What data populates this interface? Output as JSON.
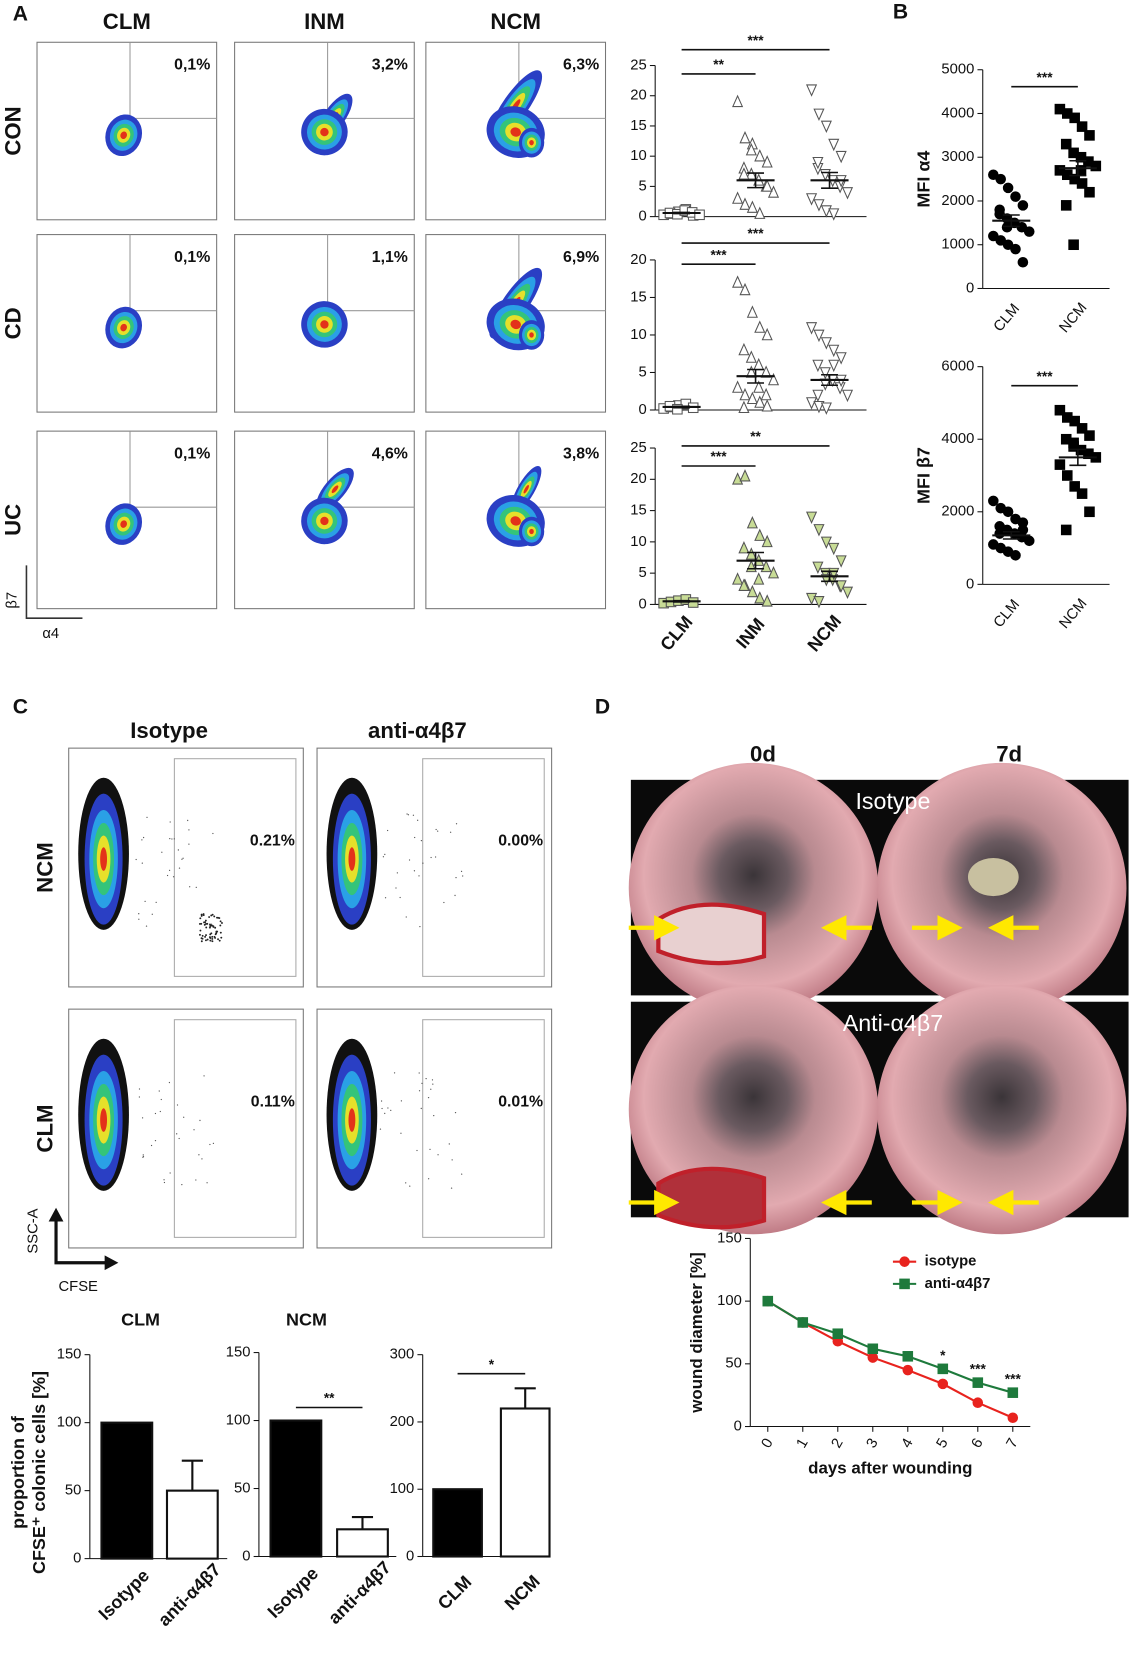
{
  "panel_labels": [
    "A",
    "B",
    "C",
    "D"
  ],
  "flow_a": {
    "columns": [
      "CLM",
      "INM",
      "NCM"
    ],
    "rows": [
      "CON",
      "CD",
      "UC"
    ],
    "percentages": [
      [
        "0,1%",
        "3,2%",
        "6,3%"
      ],
      [
        "0,1%",
        "1,1%",
        "6,9%"
      ],
      [
        "0,1%",
        "4,6%",
        "3,8%"
      ]
    ],
    "x_axis": "α4",
    "y_axis": "β7"
  },
  "flow_c": {
    "columns": [
      "Isotype",
      "anti-α4β7"
    ],
    "rows": [
      "NCM",
      "CLM"
    ],
    "percentages": [
      [
        "0.21%",
        "0.00%"
      ],
      [
        "0.11%",
        "0.01%"
      ]
    ],
    "x_axis": "CFSE",
    "y_axis": "SSC-A"
  },
  "endoscopy": {
    "columns": [
      "0d",
      "7d"
    ],
    "rows": [
      "Isotype",
      "Anti-α4β7"
    ]
  },
  "chart_data": [
    {
      "type": "dot",
      "categories": [
        null,
        null,
        null
      ],
      "ylim": [
        0,
        25
      ],
      "yticks": [
        0,
        5,
        10,
        15,
        20,
        25
      ],
      "markers": [
        "square",
        "triangle-up",
        "triangle-down"
      ],
      "fill": "#ffffff",
      "points": [
        [
          0.3,
          0.5,
          0.8,
          1.2,
          0.2,
          0.6,
          0.4,
          1.0,
          0.7,
          0.3
        ],
        [
          19,
          13,
          12,
          10,
          9,
          8,
          7,
          6,
          5,
          4,
          3,
          2,
          1.5,
          0.5,
          5,
          7,
          11
        ],
        [
          21,
          17,
          15,
          12,
          10,
          8,
          7,
          6,
          5,
          4,
          3,
          2,
          1,
          0.5,
          6,
          9
        ]
      ],
      "means": [
        0.6,
        6,
        6
      ],
      "sems": [
        0.1,
        1.2,
        1.3
      ],
      "annotations": [
        {
          "text": "***",
          "from": 0,
          "to": 2
        },
        {
          "text": "**",
          "from": 0,
          "to": 1
        }
      ]
    },
    {
      "type": "dot",
      "categories": [
        null,
        null,
        null
      ],
      "ylim": [
        0,
        20
      ],
      "yticks": [
        0,
        5,
        10,
        15,
        20
      ],
      "markers": [
        "square",
        "triangle-up",
        "triangle-down"
      ],
      "fill": "#ffffff",
      "points": [
        [
          0.2,
          0.4,
          0.6,
          0.8,
          0.3,
          0.5,
          0.1
        ],
        [
          17,
          16,
          13,
          11,
          10,
          8,
          7,
          6,
          5,
          4,
          3,
          2,
          1.5,
          1,
          0.5,
          0.3,
          5,
          3,
          2
        ],
        [
          11,
          10,
          9,
          8,
          7,
          6,
          5,
          4,
          3,
          2,
          1,
          0.5,
          0.3,
          6,
          4,
          2,
          3.5
        ]
      ],
      "means": [
        0.4,
        4.5,
        4
      ],
      "sems": [
        0.1,
        0.9,
        0.7
      ],
      "annotations": [
        {
          "text": "***",
          "from": 0,
          "to": 2
        },
        {
          "text": "***",
          "from": 0,
          "to": 1
        }
      ]
    },
    {
      "type": "dot",
      "categories": [
        "CLM",
        "INM",
        "NCM"
      ],
      "ylim": [
        0,
        25
      ],
      "yticks": [
        0,
        5,
        10,
        15,
        20,
        25
      ],
      "markers": [
        "square",
        "triangle-up",
        "triangle-down"
      ],
      "fill": "#c8dc96",
      "points": [
        [
          0.2,
          0.4,
          0.6,
          0.8,
          0.3
        ],
        [
          20,
          20.5,
          13,
          11,
          10,
          9,
          8,
          7,
          6,
          5,
          4,
          3,
          2,
          1,
          0.5,
          3,
          6,
          4
        ],
        [
          14,
          12,
          10,
          9,
          7,
          6,
          5,
          4,
          3,
          2,
          1,
          0.5,
          4,
          5,
          3
        ]
      ],
      "means": [
        0.5,
        7,
        4.5
      ],
      "sems": [
        0.1,
        1.3,
        0.8
      ],
      "annotations": [
        {
          "text": "**",
          "from": 0,
          "to": 2
        },
        {
          "text": "***",
          "from": 0,
          "to": 1
        }
      ]
    },
    {
      "type": "dot",
      "categories": [
        "CLM",
        "NCM"
      ],
      "ylabel": "MFI α4",
      "ylim": [
        0,
        5000
      ],
      "yticks": [
        0,
        1000,
        2000,
        3000,
        4000,
        5000
      ],
      "markers": [
        "circle",
        "square"
      ],
      "fill": "#000000",
      "points": [
        [
          2600,
          2500,
          2300,
          2100,
          1900,
          1700,
          1600,
          1500,
          1400,
          1300,
          1200,
          1100,
          1000,
          900,
          600,
          1800,
          1400
        ],
        [
          4100,
          4000,
          3900,
          3700,
          3500,
          3300,
          3100,
          3000,
          2900,
          2800,
          2700,
          2600,
          2500,
          2400,
          2200,
          1900,
          1000,
          2700
        ]
      ],
      "means": [
        1550,
        2750
      ],
      "sems": [
        130,
        170
      ],
      "annotations": [
        {
          "text": "***",
          "from": 0,
          "to": 1
        }
      ]
    },
    {
      "type": "dot",
      "categories": [
        "CLM",
        "NCM"
      ],
      "ylabel": "MFI β7",
      "ylim": [
        0,
        6000
      ],
      "yticks": [
        0,
        2000,
        4000,
        6000
      ],
      "markers": [
        "circle",
        "square"
      ],
      "fill": "#000000",
      "points": [
        [
          2300,
          2100,
          2000,
          1800,
          1700,
          1600,
          1500,
          1400,
          1300,
          1200,
          1100,
          1000,
          900,
          800,
          1500,
          1400
        ],
        [
          4800,
          4600,
          4500,
          4300,
          4100,
          4000,
          3900,
          3700,
          3600,
          3500,
          3300,
          3000,
          2700,
          2500,
          2000,
          1500,
          3800
        ]
      ],
      "means": [
        1350,
        3500
      ],
      "sems": [
        100,
        220
      ],
      "annotations": [
        {
          "text": "***",
          "from": 0,
          "to": 1
        }
      ]
    },
    {
      "type": "bar",
      "title": "CLM",
      "ylabel": [
        "proportion of",
        "CFSE⁺ colonic cells [%]"
      ],
      "categories": [
        "Isotype",
        "anti-α4β7"
      ],
      "values": [
        100,
        50
      ],
      "errors": [
        null,
        22
      ],
      "colors": [
        "#000000",
        "#ffffff"
      ],
      "ylim": [
        0,
        150
      ],
      "yticks": [
        0,
        50,
        100,
        150
      ],
      "annotations": []
    },
    {
      "type": "bar",
      "title": "NCM",
      "categories": [
        "Isotype",
        "anti-α4β7"
      ],
      "values": [
        100,
        20
      ],
      "errors": [
        null,
        9
      ],
      "colors": [
        "#000000",
        "#ffffff"
      ],
      "ylim": [
        0,
        150
      ],
      "yticks": [
        0,
        50,
        100,
        150
      ],
      "annotations": [
        {
          "text": "**",
          "from": 0,
          "to": 1
        }
      ]
    },
    {
      "type": "bar",
      "categories": [
        "CLM",
        "NCM"
      ],
      "values": [
        100,
        220
      ],
      "errors": [
        null,
        30
      ],
      "colors": [
        "#000000",
        "#ffffff"
      ],
      "ylim": [
        0,
        300
      ],
      "yticks": [
        0,
        100,
        200,
        300
      ],
      "annotations": [
        {
          "text": "*",
          "from": 0,
          "to": 1
        }
      ]
    },
    {
      "type": "line",
      "xlabel": "days after wounding",
      "ylabel": "wound diameter [%]",
      "x": [
        0,
        1,
        2,
        3,
        4,
        5,
        6,
        7
      ],
      "xlim": [
        -0.5,
        7.5
      ],
      "xticks": [
        0,
        1,
        2,
        3,
        4,
        5,
        6,
        7
      ],
      "ylim": [
        0,
        150
      ],
      "yticks": [
        0,
        50,
        100,
        150
      ],
      "legend": "upper right",
      "series": [
        {
          "name": "isotype",
          "color": "#e8231e",
          "marker": "circle",
          "values": [
            100,
            83,
            68,
            55,
            45,
            34,
            19,
            7
          ]
        },
        {
          "name": "anti-α4β7",
          "color": "#1e7a3c",
          "marker": "square",
          "values": [
            100,
            83,
            74,
            62,
            56,
            46,
            35,
            27
          ]
        }
      ],
      "annotations": [
        {
          "text": "*",
          "x": 5
        },
        {
          "text": "***",
          "x": 6
        },
        {
          "text": "***",
          "x": 7
        }
      ]
    }
  ]
}
